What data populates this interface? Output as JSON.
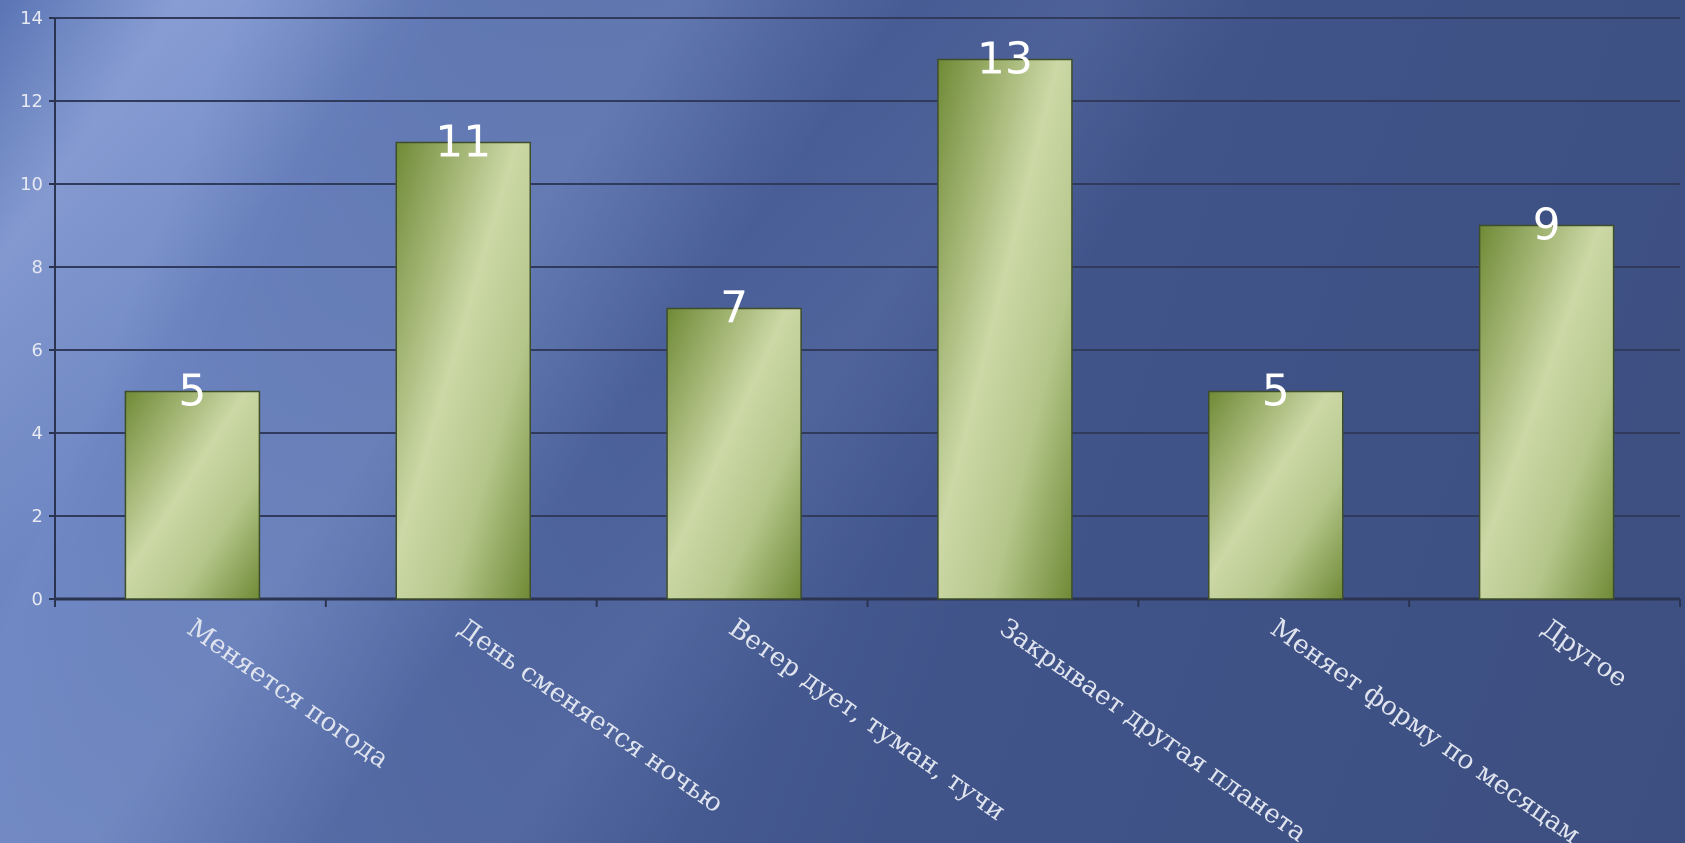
{
  "chart_data": {
    "type": "bar",
    "categories": [
      "Меняется погода",
      "День сменяется ночью",
      "Ветер дует, туман, тучи",
      "Закрывает другая планета",
      "Меняет форму по месяцам",
      "Другое"
    ],
    "values": [
      5,
      11,
      7,
      13,
      5,
      9
    ],
    "title": "",
    "xlabel": "",
    "ylabel": "",
    "ylim": [
      0,
      14
    ],
    "yticks": [
      0,
      2,
      4,
      6,
      8,
      10,
      12,
      14
    ],
    "grid": true,
    "data_labels": true,
    "legend": "none",
    "colors": {
      "bar_light": "#ccd8a6",
      "bar_dark": "#6f8a36",
      "grid": "#2f3a5c",
      "background": "#4a5f98"
    }
  }
}
